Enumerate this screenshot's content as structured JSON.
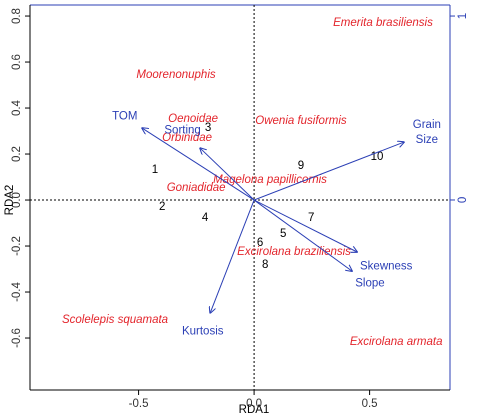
{
  "chart_data": {
    "type": "biplot",
    "xlabel": "RDA1",
    "ylabel": "RDA2",
    "xlim": [
      -0.97,
      0.848
    ],
    "ylim": [
      -0.826,
      0.848
    ],
    "y2lim": [
      -1.033,
      1.06
    ],
    "xticks": [
      -0.5,
      {
        "value": 0,
        "label": "0.0"
      },
      0.5
    ],
    "yticks": [
      -0.6,
      -0.4,
      -0.2,
      {
        "value": 0,
        "label": "0.0"
      },
      0.2,
      0.4,
      0.6,
      0.8
    ],
    "y2ticks": [
      0,
      1
    ],
    "species": {
      "color": "#e3242b",
      "names": [
        "Emerita brasiliensis",
        "Moorenonuphis",
        "Oenoidae",
        "Owenia fusiformis",
        "Orbinidae",
        "Magelona papillicornis",
        "Goniadidae",
        "Excirolana braziliensis",
        "Scolelepis squamata",
        "Excirolana armata"
      ],
      "x": [
        0.558,
        -0.338,
        -0.264,
        0.203,
        -0.29,
        0.069,
        -0.251,
        0.173,
        -0.602,
        0.615
      ],
      "y": [
        0.77,
        0.543,
        0.352,
        0.343,
        0.27,
        0.087,
        0.052,
        -0.226,
        -0.522,
        -0.617
      ]
    },
    "sites": {
      "color": "#000000",
      "labels": [
        "1",
        "2",
        "3",
        "4",
        "5",
        "6",
        "7",
        "8",
        "9",
        "10"
      ],
      "x": [
        -0.429,
        -0.398,
        -0.199,
        -0.212,
        0.126,
        0.026,
        0.247,
        0.048,
        0.203,
        0.532
      ],
      "y": [
        0.13,
        -0.03,
        0.313,
        -0.078,
        -0.148,
        -0.187,
        -0.078,
        -0.283,
        0.148,
        0.187
      ]
    },
    "arrows": {
      "color": "#2b3fb5",
      "labels": [
        "TOM",
        "Sorting",
        "Grain\nSize",
        "Skewness",
        "Slope",
        "Kurtosis"
      ],
      "x": [
        -0.485,
        -0.234,
        0.649,
        0.446,
        0.424,
        -0.19
      ],
      "y": [
        0.313,
        0.226,
        0.252,
        -0.226,
        -0.309,
        -0.491
      ]
    }
  }
}
